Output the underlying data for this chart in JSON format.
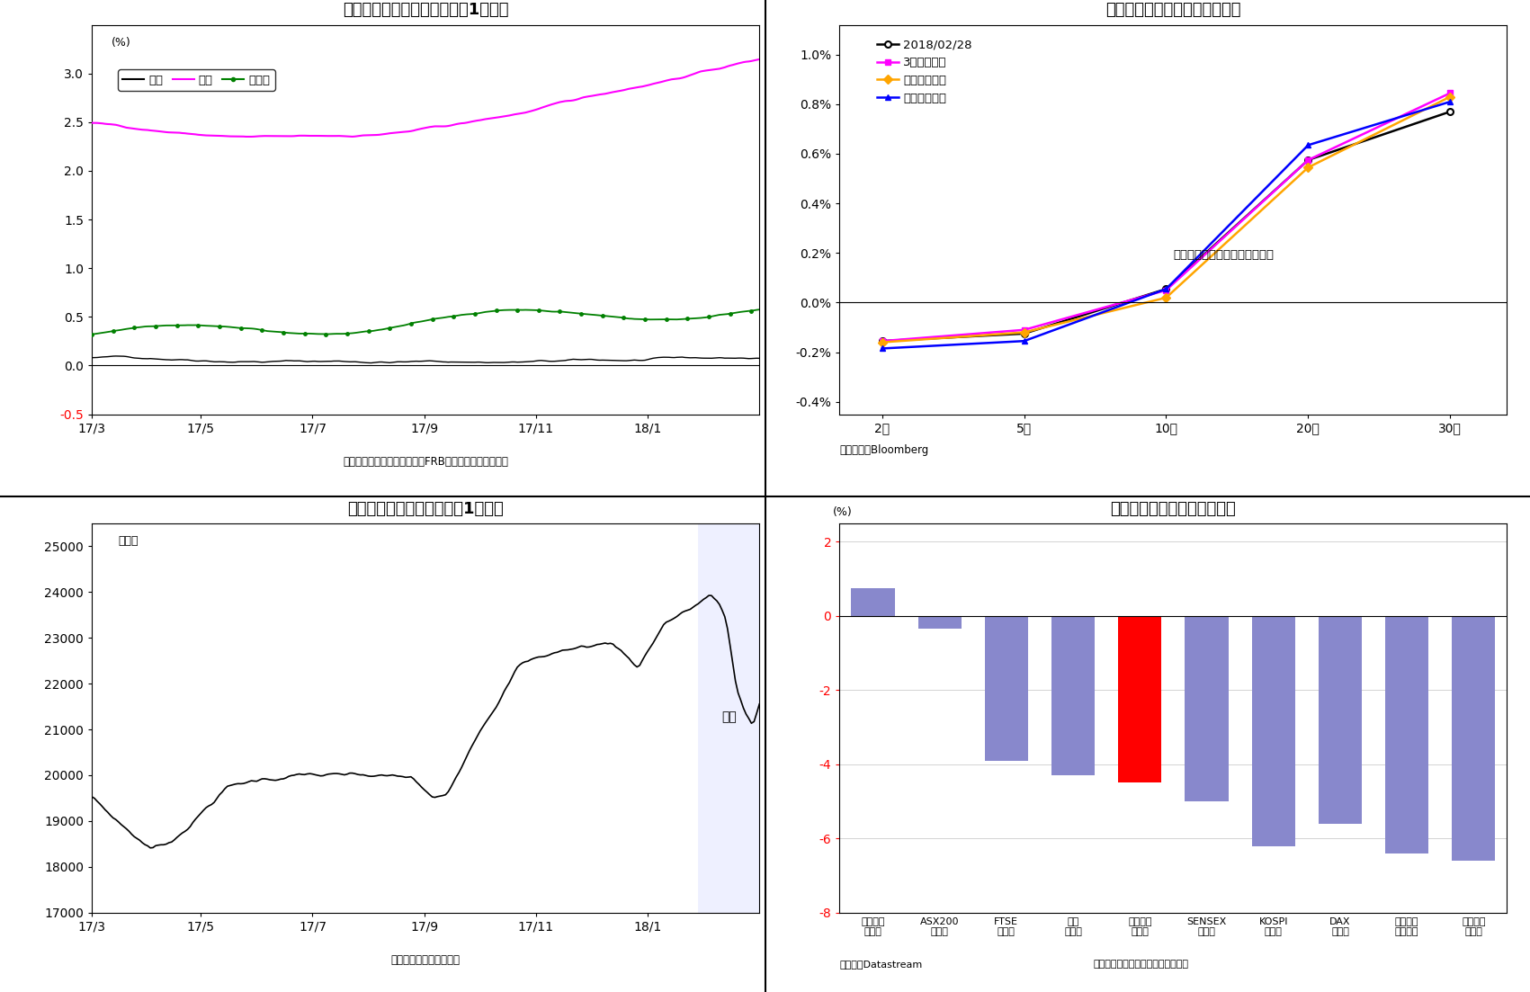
{
  "title_top_left": "日米独長期金利の推移（直近1年間）",
  "title_top_right": "日本国債イールドカーブの変化",
  "title_bot_left": "日経平均株価の推移（直近1年間）",
  "title_bot_right": "主要国株価の騰落率（２月）",
  "interest_rate": {
    "x_labels": [
      "17/3",
      "17/5",
      "17/7",
      "17/9",
      "17/11",
      "18/1"
    ],
    "ylim": [
      -0.5,
      3.5
    ],
    "yticks": [
      -0.5,
      0.0,
      0.5,
      1.0,
      1.5,
      2.0,
      2.5,
      3.0
    ],
    "data_source": "〔データ〕日本証券業協会、FRB、ドイツ連邦準備銀行"
  },
  "yield_curve": {
    "maturities_pos": [
      0,
      1,
      2,
      3,
      4
    ],
    "mat_labels": [
      "2年",
      "5年",
      "10年",
      "20年",
      "30年"
    ],
    "current": [
      -0.155,
      -0.125,
      0.055,
      0.575,
      0.77
    ],
    "m3_ago": [
      -0.155,
      -0.11,
      0.05,
      0.575,
      0.845
    ],
    "m6_ago": [
      -0.16,
      -0.12,
      0.02,
      0.545,
      0.83
    ],
    "y1_ago": [
      -0.185,
      -0.155,
      0.055,
      0.635,
      0.81
    ],
    "annotation": "過去の形状はいずれも月末時点",
    "data_source": "〔データ〕Bloomberg",
    "ylim": [
      -0.45,
      1.12
    ],
    "ytick_vals": [
      -0.4,
      -0.2,
      0.0,
      0.2,
      0.4,
      0.6,
      0.8,
      1.0
    ],
    "ytick_labels": [
      "-0.4%",
      "-0.2%",
      "0.0%",
      "0.2%",
      "0.4%",
      "0.6%",
      "0.8%",
      "1.0%"
    ]
  },
  "nikkei": {
    "data_source": "〔データ〕日本経済新聞",
    "ylim": [
      17000,
      25500
    ],
    "yticks": [
      17000,
      18000,
      19000,
      20000,
      21000,
      22000,
      23000,
      24000,
      25000
    ],
    "shade_label": "２月",
    "shade_color": "#c8d0ff"
  },
  "stock_changes": {
    "categories": [
      "ボベスパ\n（伯）",
      "ASX200\n（豪）",
      "FTSE\n（英）",
      "ダウ\n（米）",
      "日経平均\n（日）",
      "SENSEX\n（印）",
      "KOSPI\n（韓）",
      "DAX\n（独）",
      "ハンセン\n（香港）",
      "上海総合\n（中）"
    ],
    "values": [
      0.75,
      -0.35,
      -3.9,
      -4.3,
      -4.5,
      -5.0,
      -6.2,
      -5.6,
      -6.4,
      -6.6
    ],
    "bar_color": "#8888cc",
    "bar_color_nikkei": "#ff0000",
    "data_source": "（資料）Datastream",
    "note": "（注）当月終値の前月終値との比較",
    "ylim": [
      -8,
      2.5
    ],
    "yticks": [
      -8,
      -6,
      -4,
      -2,
      0,
      2
    ]
  },
  "background_color": "#ffffff",
  "panel_border_color": "#000000"
}
